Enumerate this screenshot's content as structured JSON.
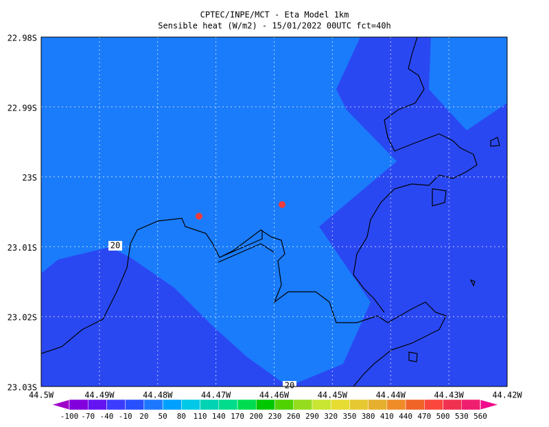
{
  "title": {
    "line1": "CPTEC/INPE/MCT -  Eta Model 1km",
    "line2": "Sensible heat (W/m2) - 15/01/2022 00UTC fct=40h"
  },
  "lat_labels": [
    "22.98S",
    "22.99S",
    "23S",
    "23.01S",
    "23.02S",
    "23.03S"
  ],
  "lon_labels": [
    "44.5W",
    "44.49W",
    "44.48W",
    "44.47W",
    "44.46W",
    "44.45W",
    "44.44W",
    "44.43W",
    "44.42W"
  ],
  "contour_labels": [
    "20",
    "20"
  ],
  "colorbar": {
    "labels": [
      "-100",
      "-70",
      "-40",
      "-10",
      "20",
      "50",
      "80",
      "110",
      "140",
      "170",
      "200",
      "230",
      "260",
      "290",
      "320",
      "350",
      "380",
      "410",
      "440",
      "470",
      "500",
      "530",
      "560"
    ],
    "colors": [
      "#a000c8",
      "#8200dc",
      "#6414f0",
      "#3c3cff",
      "#2850ff",
      "#1e78ff",
      "#00a0ff",
      "#00c8e6",
      "#00d2b4",
      "#00dc8c",
      "#00dc50",
      "#00c800",
      "#50d200",
      "#96dc1e",
      "#c8e632",
      "#e6dc32",
      "#e6c832",
      "#e6af2d",
      "#f08c28",
      "#f06428",
      "#fa463c",
      "#f03250",
      "#f01e6e",
      "#f00a8c"
    ]
  }
}
